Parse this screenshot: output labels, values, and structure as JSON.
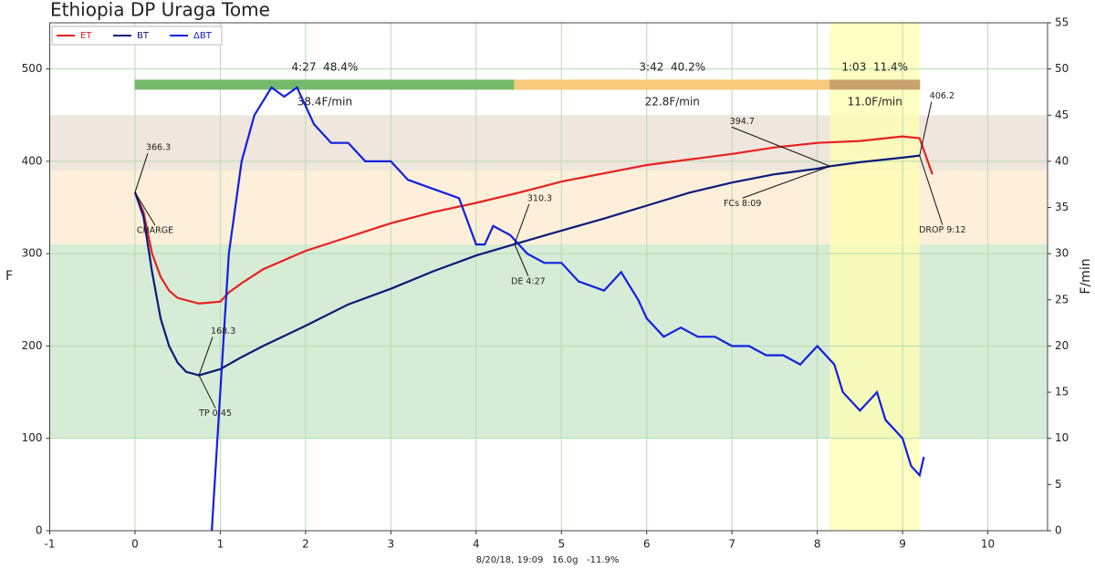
{
  "chart_data": {
    "type": "line",
    "title": "Ethiopia DP Uraga Tome",
    "subtitle": "8/20/18, 19:09   16.0g   -11.9%",
    "y_label": "F",
    "y2_label": "F/min",
    "xlim": [
      -1,
      10.7
    ],
    "xticks": [
      -1,
      0,
      1,
      2,
      3,
      4,
      5,
      6,
      7,
      8,
      9,
      10
    ],
    "ylim": [
      0,
      550
    ],
    "yticks": [
      0,
      100,
      200,
      300,
      400,
      500
    ],
    "y2lim": [
      0,
      55
    ],
    "y2ticks": [
      0,
      5,
      10,
      15,
      20,
      25,
      30,
      35,
      40,
      45,
      50,
      55
    ],
    "grid": true,
    "legend": "upper left",
    "bands": [
      {
        "from": 100,
        "to": 310,
        "color": "#d6ecd6"
      },
      {
        "from": 310,
        "to": 390,
        "color": "#fdefd9"
      },
      {
        "from": 390,
        "to": 450,
        "color": "#efe6dd"
      }
    ],
    "highlight": {
      "start": 8.15,
      "end": 9.2,
      "color": "#ffffb0"
    },
    "phases": [
      {
        "start": 0,
        "end": 4.45,
        "color": "#76b96b",
        "label": "4:27  48.4%",
        "rate": "38.4F/min"
      },
      {
        "start": 4.45,
        "end": 8.15,
        "color": "#f7c97a",
        "label": "3:42  40.2%",
        "rate": "22.8F/min"
      },
      {
        "start": 8.15,
        "end": 9.2,
        "color": "#c8a36e",
        "label": "1:03  11.4%",
        "rate": "11.0F/min"
      }
    ],
    "phase_level": 483,
    "series": [
      {
        "name": "ET",
        "color": "#e8201f",
        "x": [
          0,
          0.1,
          0.2,
          0.3,
          0.4,
          0.5,
          0.75,
          1.0,
          1.1,
          1.25,
          1.5,
          2,
          2.5,
          3,
          3.5,
          4,
          4.5,
          5,
          5.5,
          6,
          6.5,
          7,
          7.5,
          8,
          8.5,
          9,
          9.2,
          9.35
        ],
        "values": [
          366,
          345,
          300,
          275,
          260,
          252,
          246,
          248,
          258,
          268,
          283,
          303,
          318,
          333,
          345,
          355,
          366,
          378,
          387,
          396,
          402,
          408,
          415,
          420,
          422,
          427,
          425,
          386
        ]
      },
      {
        "name": "BT",
        "color": "#0a1a7a",
        "x": [
          0,
          0.1,
          0.2,
          0.3,
          0.4,
          0.5,
          0.6,
          0.75,
          1.0,
          1.25,
          1.5,
          2,
          2.5,
          3,
          3.5,
          4,
          4.45,
          5,
          5.5,
          6,
          6.5,
          7,
          7.5,
          8,
          8.15,
          8.5,
          9,
          9.2
        ],
        "values": [
          366.3,
          340,
          280,
          230,
          200,
          182,
          172,
          168.3,
          175,
          188,
          200,
          222,
          245,
          262,
          281,
          298,
          310.3,
          325,
          338,
          352,
          366,
          377,
          386,
          392,
          394.7,
          399,
          404,
          406.2
        ]
      },
      {
        "name": "ΔBT",
        "color": "#1020e0",
        "axis": "y2",
        "x": [
          0.9,
          1.0,
          1.1,
          1.25,
          1.4,
          1.6,
          1.75,
          1.9,
          2.1,
          2.3,
          2.5,
          2.7,
          2.9,
          3.0,
          3.2,
          3.5,
          3.8,
          4.0,
          4.1,
          4.2,
          4.4,
          4.6,
          4.8,
          5.0,
          5.2,
          5.5,
          5.7,
          5.9,
          6.0,
          6.2,
          6.4,
          6.6,
          6.8,
          7.0,
          7.2,
          7.4,
          7.6,
          7.8,
          8.0,
          8.2,
          8.3,
          8.5,
          8.7,
          8.8,
          9.0,
          9.1,
          9.2,
          9.25
        ],
        "values": [
          0,
          15,
          30,
          40,
          45,
          48,
          47,
          48,
          44,
          42,
          42,
          40,
          40,
          40,
          38,
          37,
          36,
          31,
          31,
          33,
          32,
          30,
          29,
          29,
          27,
          26,
          28,
          25,
          23,
          21,
          22,
          21,
          21,
          20,
          20,
          19,
          19,
          18,
          20,
          18,
          15,
          13,
          15,
          12,
          10,
          7,
          6,
          8
        ]
      }
    ],
    "events": [
      {
        "x": 0,
        "value": 366.3,
        "label": "CHARGE"
      },
      {
        "x": 0.75,
        "value": 168.3,
        "label": "TP 0:45"
      },
      {
        "x": 4.45,
        "value": 310.3,
        "label": "DE 4:27"
      },
      {
        "x": 8.15,
        "value": 394.7,
        "label": "FCs 8:09"
      },
      {
        "x": 9.2,
        "value": 406.2,
        "label": "DROP 9:12"
      }
    ]
  }
}
